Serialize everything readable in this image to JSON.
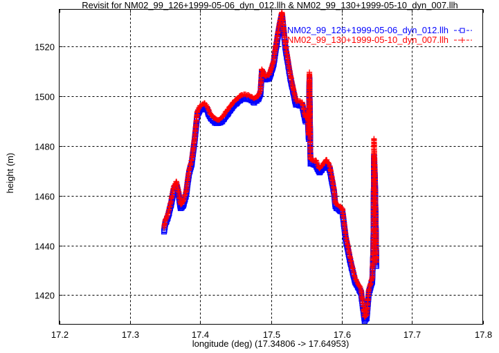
{
  "chart_data": {
    "type": "scatter",
    "title": "Revisit for NM02_99_126+1999-05-06_dyn_012.llh & NM02_99_130+1999-05-10_dyn_007.llh",
    "xlabel": "longitude (deg) (17.34806 -> 17.64953)",
    "ylabel": "height (m)",
    "xlim": [
      17.2,
      17.8
    ],
    "ylim": [
      1408.3,
      1535
    ],
    "xticks": [
      "17.2",
      "17.3",
      "17.4",
      "17.5",
      "17.6",
      "17.7",
      "17.8"
    ],
    "yticks": [
      "1420",
      "1440",
      "1460",
      "1480",
      "1500",
      "1520"
    ],
    "grid": true,
    "legend_position": "top-right",
    "series": [
      {
        "name": "NM02_99_126+1999-05-06_dyn_012.llh",
        "color": "#0000ff",
        "marker": "square",
        "x": [
          17.3485,
          17.3504,
          17.3544,
          17.3583,
          17.3622,
          17.3662,
          17.3691,
          17.3721,
          17.376,
          17.3799,
          17.3839,
          17.3878,
          17.3917,
          17.3957,
          17.3996,
          17.4055,
          17.4094,
          17.4134,
          17.4193,
          17.4252,
          17.4311,
          17.4389,
          17.4488,
          17.4586,
          17.4684,
          17.4763,
          17.4822,
          17.4852,
          17.4871,
          17.492,
          17.4979,
          17.5038,
          17.5078,
          17.5117,
          17.5156,
          17.5206,
          17.5274,
          17.5353,
          17.5442,
          17.5491,
          17.552,
          17.5535,
          17.5545,
          17.556,
          17.5638,
          17.5687,
          17.5786,
          17.5835,
          17.5894,
          17.5914,
          17.6012,
          17.6061,
          17.613,
          17.6189,
          17.6277,
          17.6327,
          17.6356,
          17.6386,
          17.6435,
          17.645,
          17.646,
          17.6474,
          17.6494
        ],
        "y": [
          1445.7,
          1448.8,
          1451.6,
          1456.3,
          1461.9,
          1463.9,
          1460.5,
          1454.9,
          1456.3,
          1460.5,
          1468.9,
          1473.1,
          1481.5,
          1492.6,
          1494.6,
          1495.4,
          1494.6,
          1491.8,
          1489.8,
          1489.0,
          1490.1,
          1493.2,
          1496.8,
          1499.1,
          1499.1,
          1497.7,
          1498.8,
          1501.0,
          1509.9,
          1506.6,
          1507.4,
          1513.0,
          1520.6,
          1527.5,
          1532.6,
          1519.2,
          1507.4,
          1496.8,
          1496.3,
          1489.8,
          1491.8,
          1482.8,
          1507.0,
          1473.1,
          1472.2,
          1469.4,
          1473.1,
          1470.3,
          1461.1,
          1455.5,
          1453.5,
          1442.3,
          1432.6,
          1425.6,
          1420.8,
          1409.7,
          1410.8,
          1420.8,
          1425.6,
          1438.2,
          1475.9,
          1466.1,
          1431.2
        ]
      },
      {
        "name": "NM02_99_130+1999-05-10_dyn_007.llh",
        "color": "#ff0000",
        "marker": "plus",
        "x": [
          17.3485,
          17.3504,
          17.3544,
          17.3583,
          17.3622,
          17.3662,
          17.3691,
          17.3721,
          17.376,
          17.3799,
          17.3839,
          17.3878,
          17.3917,
          17.3957,
          17.3996,
          17.4055,
          17.4094,
          17.4134,
          17.4193,
          17.4252,
          17.4311,
          17.4389,
          17.4488,
          17.4586,
          17.4684,
          17.4763,
          17.4822,
          17.4852,
          17.4871,
          17.492,
          17.4979,
          17.5038,
          17.5078,
          17.5117,
          17.5156,
          17.5206,
          17.5274,
          17.5353,
          17.5442,
          17.5491,
          17.552,
          17.5535,
          17.5545,
          17.556,
          17.5638,
          17.5687,
          17.5786,
          17.5835,
          17.5894,
          17.5914,
          17.6012,
          17.6061,
          17.613,
          17.6189,
          17.6277,
          17.6327,
          17.6356,
          17.6386,
          17.6435,
          17.645,
          17.646,
          17.6474,
          17.6494
        ],
        "y": [
          1447.2,
          1450.3,
          1453.1,
          1457.8,
          1463.6,
          1465.8,
          1462.0,
          1456.4,
          1457.8,
          1462.0,
          1470.4,
          1474.6,
          1483.0,
          1494.1,
          1496.1,
          1497.2,
          1496.1,
          1493.3,
          1491.3,
          1490.5,
          1491.6,
          1494.7,
          1498.3,
          1500.6,
          1500.6,
          1499.2,
          1500.3,
          1502.5,
          1511.0,
          1508.1,
          1508.9,
          1514.5,
          1522.1,
          1529.0,
          1534.0,
          1520.7,
          1508.9,
          1498.3,
          1497.8,
          1491.3,
          1493.3,
          1484.3,
          1509.5,
          1474.6,
          1474.1,
          1470.9,
          1474.6,
          1471.8,
          1462.6,
          1457.0,
          1455.0,
          1443.8,
          1434.1,
          1427.1,
          1422.3,
          1411.2,
          1412.3,
          1422.3,
          1427.1,
          1439.7,
          1483.0,
          1467.6,
          1432.7
        ]
      }
    ]
  }
}
